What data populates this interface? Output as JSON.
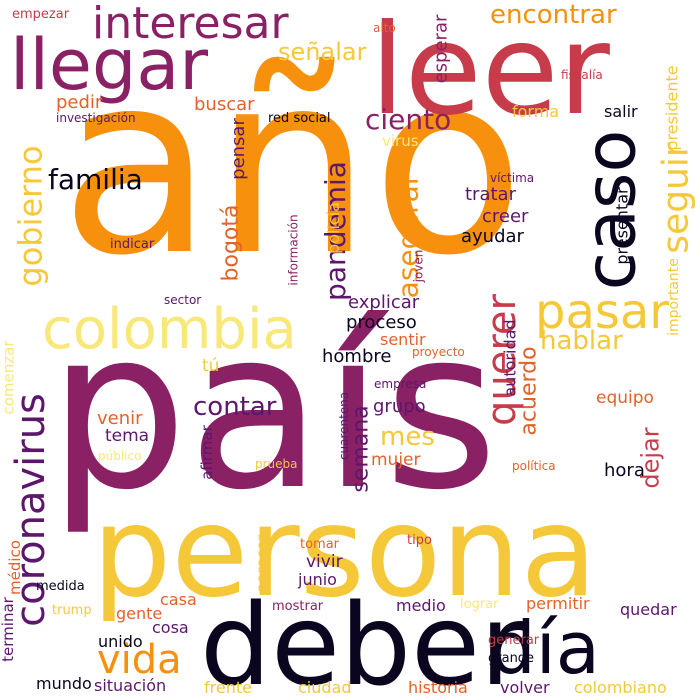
{
  "colors": {
    "background": "#ffffff",
    "orange": "#f7900c",
    "yellow": "#f5c83a",
    "pale_yellow": "#f8e87a",
    "magenta": "#8a2165",
    "purple": "#5c176d",
    "red": "#c73b4a",
    "dark_orange": "#e3622a",
    "black": "#0b0520"
  },
  "words": [
    {
      "text": "año",
      "color": "orange"
    },
    {
      "text": "país",
      "color": "magenta"
    },
    {
      "text": "persona",
      "color": "yellow"
    },
    {
      "text": "leer",
      "color": "red"
    },
    {
      "text": "deber",
      "color": "black"
    },
    {
      "text": "llegar",
      "color": "magenta"
    },
    {
      "text": "interesar",
      "color": "magenta"
    },
    {
      "text": "colombia",
      "color": "pale_yellow"
    },
    {
      "text": "caso",
      "color": "black"
    },
    {
      "text": "día",
      "color": "black"
    },
    {
      "text": "pasar",
      "color": "yellow"
    },
    {
      "text": "vida",
      "color": "orange"
    },
    {
      "text": "encontrar",
      "color": "orange"
    },
    {
      "text": "coronavirus",
      "color": "purple"
    },
    {
      "text": "gobierno",
      "color": "yellow"
    },
    {
      "text": "querer",
      "color": "red"
    },
    {
      "text": "seguir",
      "color": "yellow"
    },
    {
      "text": "familia",
      "color": "black"
    },
    {
      "text": "ciento",
      "color": "magenta"
    },
    {
      "text": "señalar",
      "color": "yellow"
    },
    {
      "text": "pandemia",
      "color": "purple"
    },
    {
      "text": "asegurar",
      "color": "orange"
    },
    {
      "text": "hablar",
      "color": "yellow"
    },
    {
      "text": "contar",
      "color": "purple"
    },
    {
      "text": "semana",
      "color": "purple"
    },
    {
      "text": "mes",
      "color": "yellow"
    },
    {
      "text": "dejar",
      "color": "red"
    },
    {
      "text": "bogotá",
      "color": "dark_orange"
    },
    {
      "text": "acuerdo",
      "color": "dark_orange"
    },
    {
      "text": "esperar",
      "color": "magenta"
    },
    {
      "text": "pedir",
      "color": "dark_orange"
    },
    {
      "text": "buscar",
      "color": "dark_orange"
    },
    {
      "text": "pensar",
      "color": "purple"
    },
    {
      "text": "tratar",
      "color": "purple"
    },
    {
      "text": "creer",
      "color": "purple"
    },
    {
      "text": "ayudar",
      "color": "black"
    },
    {
      "text": "explicar",
      "color": "purple"
    },
    {
      "text": "proceso",
      "color": "black"
    },
    {
      "text": "sentir",
      "color": "dark_orange"
    },
    {
      "text": "hombre",
      "color": "black"
    },
    {
      "text": "grupo",
      "color": "purple"
    },
    {
      "text": "mujer",
      "color": "dark_orange"
    },
    {
      "text": "venir",
      "color": "dark_orange"
    },
    {
      "text": "tema",
      "color": "purple"
    },
    {
      "text": "equipo",
      "color": "dark_orange"
    },
    {
      "text": "hora",
      "color": "black"
    },
    {
      "text": "presentar",
      "color": "black"
    },
    {
      "text": "presidente",
      "color": "yellow"
    },
    {
      "text": "importante",
      "color": "yellow"
    },
    {
      "text": "autoridad",
      "color": "purple"
    },
    {
      "text": "salir",
      "color": "black"
    },
    {
      "text": "forma",
      "color": "yellow"
    },
    {
      "text": "virus",
      "color": "pale_yellow"
    },
    {
      "text": "policía",
      "color": "yellow"
    },
    {
      "text": "indicar",
      "color": "purple"
    },
    {
      "text": "afirmar",
      "color": "purple"
    },
    {
      "text": "vivir",
      "color": "purple"
    },
    {
      "text": "junio",
      "color": "purple"
    },
    {
      "text": "casa",
      "color": "dark_orange"
    },
    {
      "text": "cosa",
      "color": "purple"
    },
    {
      "text": "gente",
      "color": "dark_orange"
    },
    {
      "text": "unido",
      "color": "black"
    },
    {
      "text": "mundo",
      "color": "black"
    },
    {
      "text": "situación",
      "color": "purple"
    },
    {
      "text": "frente",
      "color": "yellow"
    },
    {
      "text": "ciudad",
      "color": "yellow"
    },
    {
      "text": "historia",
      "color": "dark_orange"
    },
    {
      "text": "volver",
      "color": "purple"
    },
    {
      "text": "colombiano",
      "color": "yellow"
    },
    {
      "text": "medio",
      "color": "purple"
    },
    {
      "text": "permitir",
      "color": "dark_orange"
    },
    {
      "text": "quedar",
      "color": "purple"
    },
    {
      "text": "grande",
      "color": "black"
    },
    {
      "text": "generar",
      "color": "red"
    },
    {
      "text": "lograr",
      "color": "pale_yellow"
    },
    {
      "text": "mostrar",
      "color": "magenta"
    },
    {
      "text": "parecer",
      "color": "yellow"
    },
    {
      "text": "tomar",
      "color": "dark_orange"
    },
    {
      "text": "tipo",
      "color": "red"
    },
    {
      "text": "trump",
      "color": "yellow"
    },
    {
      "text": "medida",
      "color": "black"
    },
    {
      "text": "médico",
      "color": "dark_orange"
    },
    {
      "text": "terminar",
      "color": "purple"
    },
    {
      "text": "comenzar",
      "color": "pale_yellow"
    },
    {
      "text": "tú",
      "color": "yellow"
    },
    {
      "text": "público",
      "color": "pale_yellow"
    },
    {
      "text": "prueba",
      "color": "yellow"
    },
    {
      "text": "política",
      "color": "dark_orange"
    },
    {
      "text": "cuarentena",
      "color": "purple"
    },
    {
      "text": "empresa",
      "color": "purple"
    },
    {
      "text": "proyecto",
      "color": "dark_orange"
    },
    {
      "text": "joven",
      "color": "magenta"
    },
    {
      "text": "información",
      "color": "magenta"
    },
    {
      "text": "sector",
      "color": "purple"
    },
    {
      "text": "víctima",
      "color": "purple"
    },
    {
      "text": "red social",
      "color": "black"
    },
    {
      "text": "investigación",
      "color": "purple"
    },
    {
      "text": "fiscalía",
      "color": "red"
    },
    {
      "text": "alto",
      "color": "dark_orange"
    },
    {
      "text": "empezar",
      "color": "red"
    }
  ]
}
